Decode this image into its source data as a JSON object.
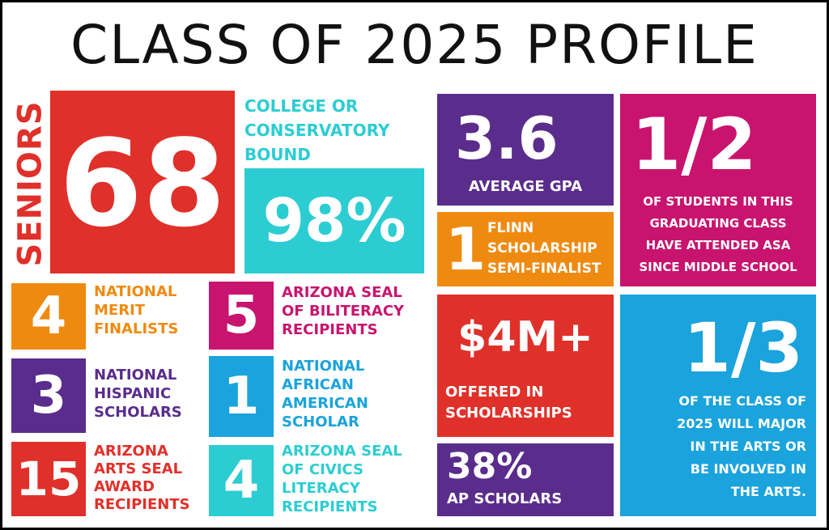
{
  "title": "CLASS OF 2025 PROFILE",
  "colors": {
    "red": "#e0302a",
    "teal": "#2ccdd2",
    "purple": "#5a2c8c",
    "magenta": "#c8146e",
    "orange": "#ef8a10",
    "blue": "#1aa3dc"
  },
  "seniors": {
    "label": "SENIORS",
    "value": "68"
  },
  "college": {
    "label_line1": "COLLEGE OR",
    "label_line2": "CONSERVATORY",
    "label_line3": "BOUND",
    "value": "98%"
  },
  "gpa": {
    "value": "3.6",
    "label": "AVERAGE GPA"
  },
  "flinn": {
    "value": "1",
    "label_line1": "FLINN",
    "label_line2": "SCHOLARSHIP",
    "label_line3": "SEMI-FINALIST"
  },
  "half": {
    "value": "1/2",
    "line1": "OF STUDENTS IN THIS",
    "line2": "GRADUATING CLASS",
    "line3": "HAVE ATTENDED ASA",
    "line4": "SINCE MIDDLE SCHOOL"
  },
  "merit": {
    "value": "4",
    "line1": "NATIONAL",
    "line2": "MERIT",
    "line3": "FINALISTS"
  },
  "biliteracy": {
    "value": "5",
    "line1": "ARIZONA SEAL",
    "line2": "OF BILITERACY",
    "line3": "RECIPIENTS"
  },
  "hispanic": {
    "value": "3",
    "line1": "NATIONAL",
    "line2": "HISPANIC",
    "line3": "SCHOLARS"
  },
  "african": {
    "value": "1",
    "line1": "NATIONAL",
    "line2": "AFRICAN",
    "line3": "AMERICAN",
    "line4": "SCHOLAR"
  },
  "arts_seal": {
    "value": "15",
    "line1": "ARIZONA",
    "line2": "ARTS SEAL",
    "line3": "AWARD",
    "line4": "RECIPIENTS"
  },
  "civics": {
    "value": "4",
    "line1": "ARIZONA SEAL",
    "line2": "OF CIVICS",
    "line3": "LITERACY",
    "line4": "RECIPIENTS"
  },
  "scholarships": {
    "value": "$4M+",
    "line1": "OFFERED IN",
    "line2": "SCHOLARSHIPS"
  },
  "third": {
    "value": "1/3",
    "line1": "OF THE CLASS OF",
    "line2": "2025 WILL MAJOR",
    "line3": "IN THE ARTS OR",
    "line4": "BE INVOLVED IN",
    "line5": "THE ARTS."
  },
  "ap": {
    "value": "38%",
    "label": "AP SCHOLARS"
  }
}
